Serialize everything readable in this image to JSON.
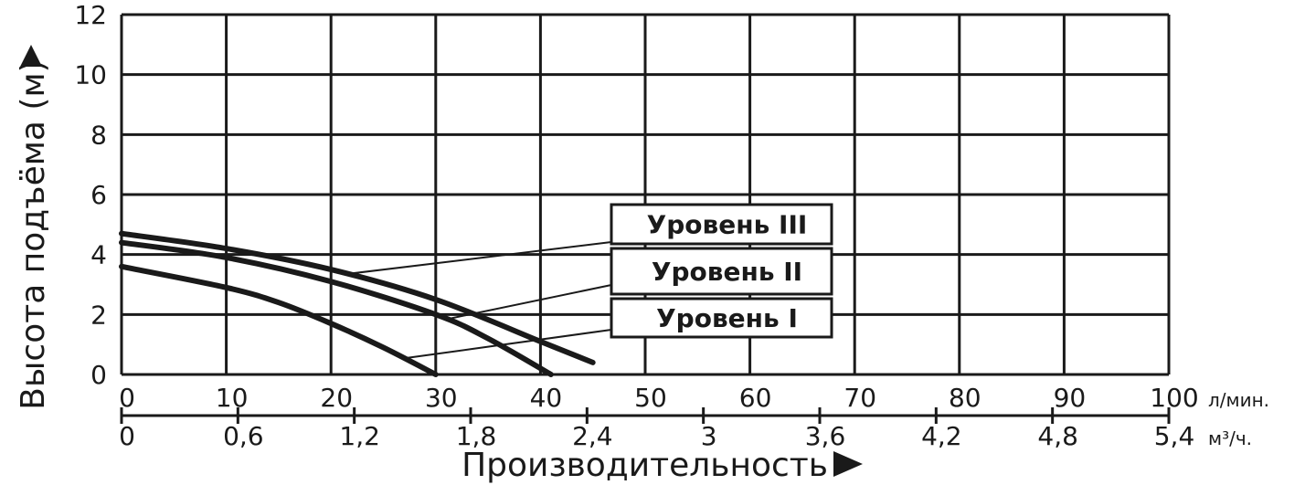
{
  "chart_data": {
    "type": "line",
    "ylabel": "Высота подъёма (м)",
    "xlabel": "Производительность",
    "ylim": [
      0,
      12
    ],
    "xlim": [
      0,
      100
    ],
    "y_ticks": [
      0,
      2,
      4,
      6,
      8,
      10,
      12
    ],
    "x_ticks_primary": [
      0,
      10,
      20,
      30,
      40,
      50,
      60,
      70,
      80,
      90,
      100
    ],
    "x_ticks_primary_labels": [
      "0",
      "10",
      "20",
      "30",
      "40",
      "50",
      "60",
      "70",
      "80",
      "90",
      "100"
    ],
    "x_unit_primary": "л/мин.",
    "x_ticks_secondary_labels": [
      "0",
      "0,6",
      "1,2",
      "1,8",
      "2,4",
      "3",
      "3,6",
      "4,2",
      "4,8",
      "5,4"
    ],
    "x_unit_secondary": "м³/ч.",
    "grid": true,
    "legend_placement": "center",
    "series": [
      {
        "name": "Уровень I",
        "x": [
          0,
          10,
          15,
          20,
          25,
          30
        ],
        "y": [
          3.6,
          2.9,
          2.4,
          1.7,
          0.9,
          0
        ]
      },
      {
        "name": "Уровень II",
        "x": [
          0,
          10,
          20,
          30,
          35,
          41
        ],
        "y": [
          4.4,
          3.9,
          3.1,
          2.0,
          1.2,
          0
        ]
      },
      {
        "name": "Уровень III",
        "x": [
          0,
          10,
          20,
          30,
          40,
          45
        ],
        "y": [
          4.7,
          4.2,
          3.5,
          2.5,
          1.1,
          0.4
        ]
      }
    ]
  },
  "colors": {
    "line": "#1a1a1a",
    "grid": "#1a1a1a",
    "background": "#ffffff"
  },
  "icons": {
    "y_title_arrow": "triangle-right-icon",
    "x_title_arrow": "triangle-right-icon"
  }
}
